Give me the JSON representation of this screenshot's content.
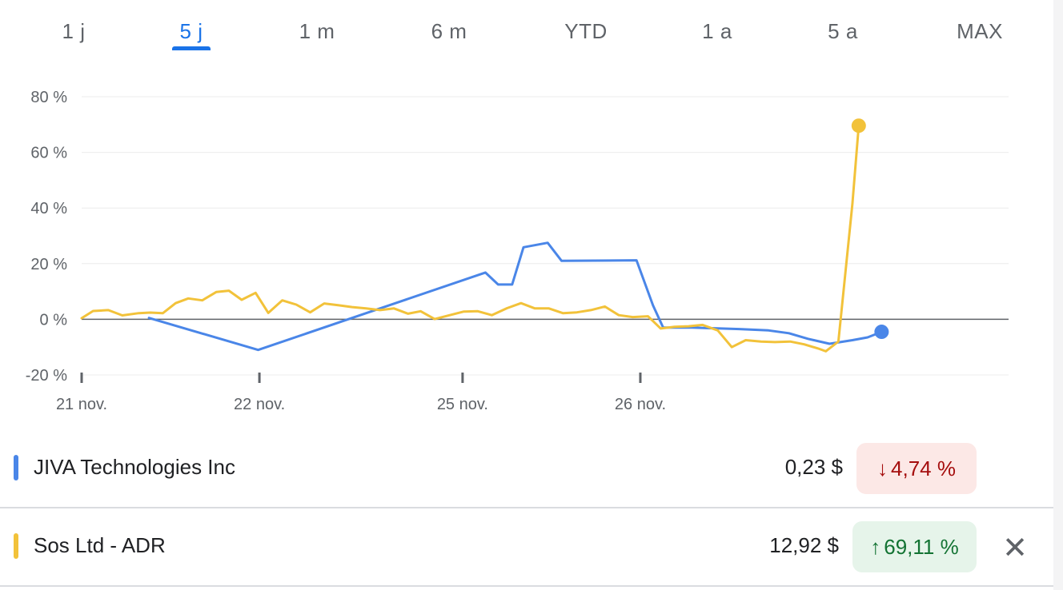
{
  "tabs": [
    {
      "label": "1 j",
      "active": false
    },
    {
      "label": "5 j",
      "active": true
    },
    {
      "label": "1 m",
      "active": false
    },
    {
      "label": "6 m",
      "active": false
    },
    {
      "label": "YTD",
      "active": false
    },
    {
      "label": "1 a",
      "active": false
    },
    {
      "label": "5 a",
      "active": false
    },
    {
      "label": "MAX",
      "active": false
    }
  ],
  "chart_data": {
    "type": "line",
    "ylim": [
      -20,
      80
    ],
    "y_ticks": [
      80,
      60,
      40,
      20,
      0,
      -20
    ],
    "y_tick_labels": [
      "80 %",
      "60 %",
      "40 %",
      "20 %",
      "0 %",
      "-20 %"
    ],
    "x_ticks": [
      0,
      7,
      15,
      22
    ],
    "x_tick_labels": [
      "21 nov.",
      "22 nov.",
      "25 nov.",
      "26 nov."
    ],
    "xlim": [
      0,
      36.5
    ],
    "grid": true,
    "series": [
      {
        "name": "JIVA Technologies Inc",
        "color": "#4a86e8",
        "points": [
          [
            2.65,
            0.5
          ],
          [
            6.95,
            -11
          ],
          [
            15.9,
            16.8
          ],
          [
            16.4,
            12.5
          ],
          [
            16.95,
            12.5
          ],
          [
            17.4,
            25.9
          ],
          [
            18.35,
            27.5
          ],
          [
            18.9,
            21
          ],
          [
            21.85,
            21.2
          ],
          [
            22.5,
            5
          ],
          [
            22.9,
            -3
          ],
          [
            24.05,
            -3
          ],
          [
            25.9,
            -3.5
          ],
          [
            27.05,
            -4
          ],
          [
            27.85,
            -5
          ],
          [
            28.6,
            -7
          ],
          [
            29.45,
            -8.8
          ],
          [
            30.35,
            -7.5
          ],
          [
            30.95,
            -6.5
          ],
          [
            31.5,
            -4.5
          ]
        ],
        "end_marker": true
      },
      {
        "name": "Sos Ltd - ADR",
        "color": "#f2c23a",
        "points": [
          [
            0,
            0.4
          ],
          [
            0.45,
            3
          ],
          [
            1.05,
            3.3
          ],
          [
            1.6,
            1.4
          ],
          [
            2.25,
            2.2
          ],
          [
            2.7,
            2.4
          ],
          [
            3.2,
            2.2
          ],
          [
            3.7,
            5.8
          ],
          [
            4.2,
            7.5
          ],
          [
            4.75,
            6.8
          ],
          [
            5.3,
            9.8
          ],
          [
            5.8,
            10.3
          ],
          [
            6.3,
            7
          ],
          [
            6.85,
            9.5
          ],
          [
            7.35,
            2.3
          ],
          [
            7.9,
            6.8
          ],
          [
            8.45,
            5.3
          ],
          [
            9.0,
            2.5
          ],
          [
            9.55,
            5.7
          ],
          [
            10.1,
            5.1
          ],
          [
            10.65,
            4.4
          ],
          [
            11.2,
            3.9
          ],
          [
            11.75,
            3.3
          ],
          [
            12.3,
            3.9
          ],
          [
            12.85,
            2
          ],
          [
            13.35,
            2.9
          ],
          [
            13.9,
            0.1
          ],
          [
            14.5,
            1.5
          ],
          [
            15.05,
            2.8
          ],
          [
            15.6,
            2.9
          ],
          [
            16.15,
            1.5
          ],
          [
            16.75,
            4
          ],
          [
            17.3,
            5.8
          ],
          [
            17.85,
            3.9
          ],
          [
            18.4,
            3.9
          ],
          [
            18.95,
            2.2
          ],
          [
            19.5,
            2.5
          ],
          [
            20.05,
            3.3
          ],
          [
            20.6,
            4.6
          ],
          [
            21.15,
            1.5
          ],
          [
            21.7,
            0.8
          ],
          [
            22.3,
            1.1
          ],
          [
            22.8,
            -3.3
          ],
          [
            23.35,
            -2.7
          ],
          [
            23.9,
            -2.5
          ],
          [
            24.45,
            -2
          ],
          [
            25.05,
            -4
          ],
          [
            25.6,
            -10
          ],
          [
            26.15,
            -7.5
          ],
          [
            26.75,
            -8
          ],
          [
            27.3,
            -8.2
          ],
          [
            27.9,
            -8
          ],
          [
            28.45,
            -9
          ],
          [
            29.0,
            -10.5
          ],
          [
            29.3,
            -11.5
          ],
          [
            29.8,
            -8
          ],
          [
            30.35,
            41.5
          ],
          [
            30.6,
            69.6
          ]
        ],
        "end_marker": true
      }
    ]
  },
  "legend": [
    {
      "name": "JIVA Technologies Inc",
      "color": "#4a86e8",
      "price": "0,23 $",
      "change": "4,74 %",
      "direction": "down",
      "arrow": "↓"
    },
    {
      "name": "Sos Ltd - ADR",
      "color": "#f2c23a",
      "price": "12,92 $",
      "change": "69,11 %",
      "direction": "up",
      "arrow": "↑",
      "close_icon": "close-icon",
      "close_glyph": "✕"
    }
  ]
}
